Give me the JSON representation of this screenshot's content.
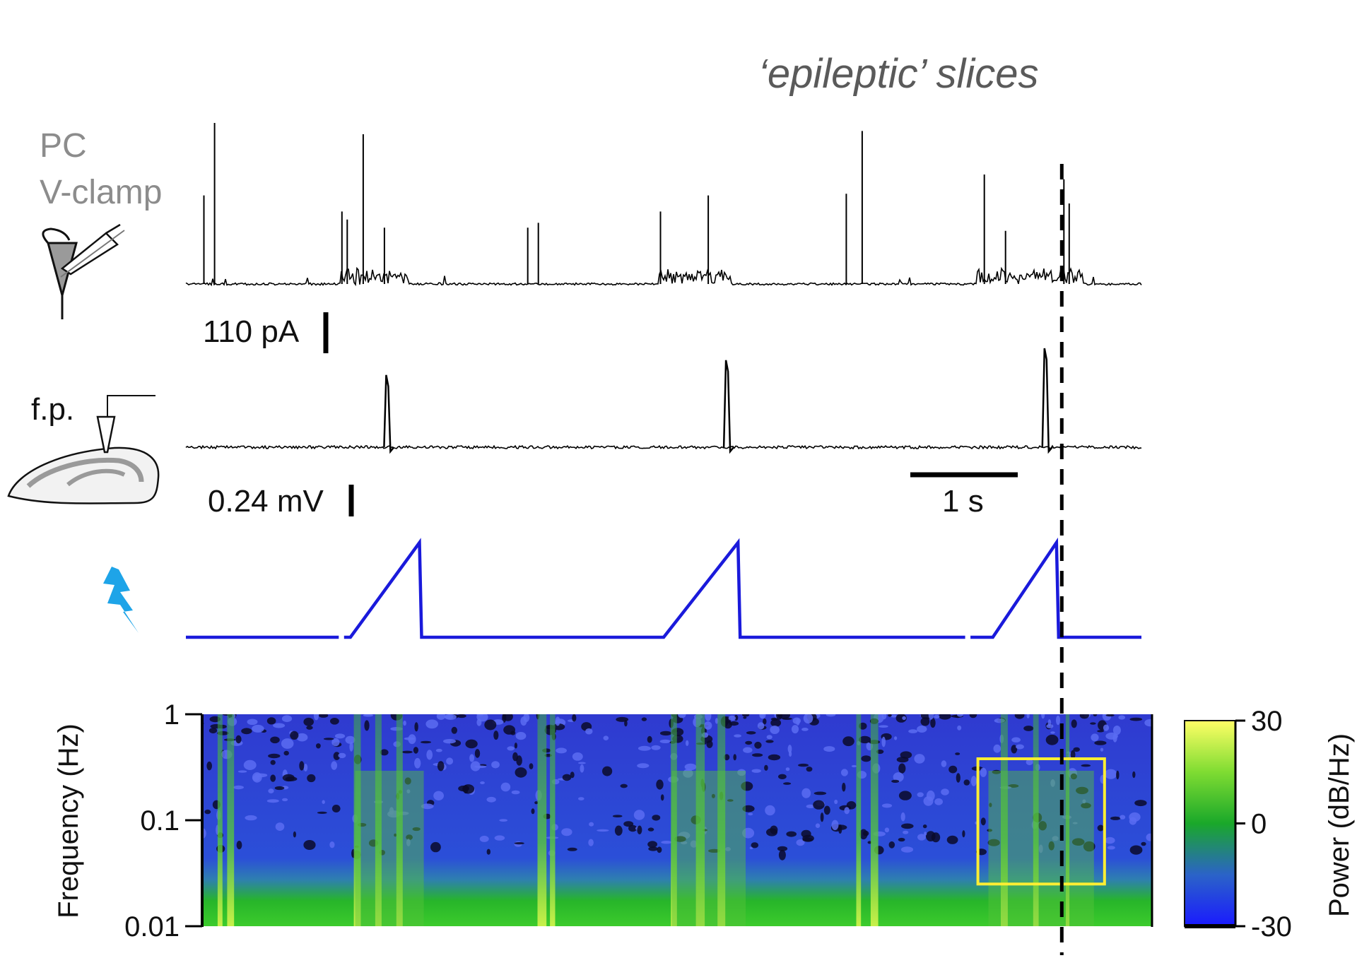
{
  "figure": {
    "title": "‘epileptic’ slices",
    "pc_label_line1": "PC",
    "pc_label_line2": "V-clamp",
    "fp_label": "f.p.",
    "current_scalebar_label": "110 pA",
    "voltage_scalebar_label": "0.24 mV",
    "time_scalebar_label": "1 s",
    "icons": [
      "pyramidal-neuron-patch-pipette-icon",
      "hippocampal-slice-electrode-icon",
      "lightning-bolt-icon"
    ]
  },
  "chart_data": [
    {
      "type": "line",
      "name": "pc-voltage-clamp-trace",
      "xlabel": "",
      "ylabel": "",
      "xlim": [
        0,
        9.0
      ],
      "scalebars": {
        "current": "110 pA",
        "time": "1 s"
      },
      "events": {
        "spike_times": [
          0.17,
          0.27,
          1.47,
          1.52,
          1.67,
          1.87,
          3.22,
          3.32,
          4.47,
          4.92,
          6.22,
          6.37,
          7.52,
          7.72,
          8.27,
          8.32
        ],
        "spike_amplitudes": [
          0.55,
          1.0,
          0.45,
          0.4,
          0.93,
          0.35,
          0.35,
          0.38,
          0.45,
          0.55,
          0.56,
          0.95,
          0.68,
          0.33,
          0.65,
          0.5
        ]
      },
      "bursts": [
        {
          "start": 1.45,
          "end": 2.1
        },
        {
          "start": 4.45,
          "end": 5.15
        },
        {
          "start": 7.45,
          "end": 8.45
        }
      ],
      "color": "#000000"
    },
    {
      "type": "line",
      "name": "field-potential-trace",
      "xlabel": "",
      "ylabel": "",
      "xlim": [
        0,
        9.0
      ],
      "scalebars": {
        "voltage": "0.24 mV",
        "time": "1 s"
      },
      "events": {
        "spike_times": [
          1.9,
          5.1,
          8.1
        ],
        "spike_amplitudes": [
          0.73,
          0.88,
          1.0
        ]
      },
      "color": "#000000"
    },
    {
      "type": "line",
      "name": "stimulation-ramp",
      "xlabel": "",
      "ylabel": "",
      "xlim": [
        0,
        9.0
      ],
      "ramps": [
        {
          "start": 1.55,
          "peak": 2.2,
          "end": 2.22
        },
        {
          "start": 4.5,
          "peak": 5.2,
          "end": 5.22
        },
        {
          "start": 7.6,
          "peak": 8.2,
          "end": 8.22
        }
      ],
      "gaps": [
        1.45,
        7.35
      ],
      "color": "#1a1adb"
    },
    {
      "type": "heatmap",
      "name": "spectrogram",
      "xlabel": "",
      "ylabel": "Frequency (Hz)",
      "yscale": "log",
      "ylim": [
        0.01,
        1
      ],
      "yticks": [
        0.01,
        0.1,
        1
      ],
      "yticklabels": [
        "0.01",
        "0.1",
        "1"
      ],
      "colorbar": {
        "label": "Power (dB/Hz)",
        "range": [
          -30,
          30
        ],
        "ticks": [
          30,
          0,
          -30
        ],
        "ticklabels": [
          "30",
          "0",
          "-30"
        ],
        "colors": [
          "#1a1aff",
          "#2b63c8",
          "#1aa82a",
          "#7fdc32",
          "#ffff66"
        ]
      },
      "bright_bands_time": [
        0.17,
        0.27,
        1.47,
        1.67,
        1.87,
        3.22,
        3.32,
        4.47,
        4.72,
        4.92,
        6.22,
        6.37,
        7.6,
        7.9,
        8.2
      ],
      "highlight_box": {
        "t_start": 7.35,
        "t_end": 8.55,
        "f_low": 0.025,
        "f_high": 0.38,
        "color": "#ffee33"
      },
      "marker_time": 8.25
    }
  ]
}
